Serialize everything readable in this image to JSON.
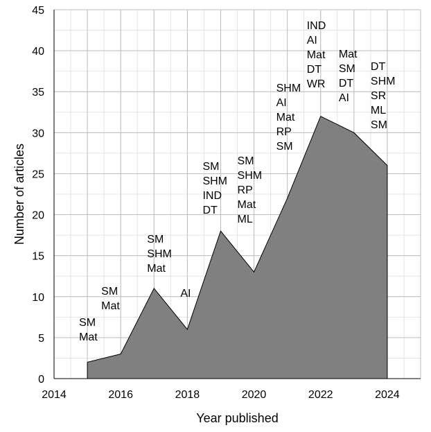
{
  "chart_data": {
    "type": "area",
    "xlabel": "Year published",
    "ylabel": "Number of articles",
    "xlim": [
      2014,
      2025
    ],
    "ylim": [
      0,
      45
    ],
    "x_ticks": [
      2014,
      2016,
      2018,
      2020,
      2022,
      2024
    ],
    "y_ticks": [
      0,
      5,
      10,
      15,
      20,
      25,
      30,
      35,
      40,
      45
    ],
    "grid": true,
    "fill_color": "#808080",
    "x": [
      2015,
      2016,
      2017,
      2018,
      2019,
      2020,
      2021,
      2022,
      2023,
      2024
    ],
    "values": [
      2,
      3,
      11,
      6,
      18,
      13,
      22,
      32,
      30,
      26
    ],
    "annotations": [
      {
        "x": 2015,
        "labels": [
          "SM",
          "Mat"
        ]
      },
      {
        "x": 2016,
        "labels": [
          "SM",
          "Mat"
        ]
      },
      {
        "x": 2017,
        "labels": [
          "SM",
          "SHM",
          "Mat"
        ]
      },
      {
        "x": 2018,
        "labels": [
          "AI"
        ]
      },
      {
        "x": 2019,
        "labels": [
          "SM",
          "SHM",
          "IND",
          "DT"
        ]
      },
      {
        "x": 2020,
        "labels": [
          "SM",
          "SHM",
          "RP",
          "Mat",
          "ML"
        ]
      },
      {
        "x": 2021,
        "labels": [
          "SHM",
          "AI",
          "Mat",
          "RP",
          "SM"
        ]
      },
      {
        "x": 2022,
        "labels": [
          "IND",
          "AI",
          "Mat",
          "DT",
          "WR"
        ]
      },
      {
        "x": 2023,
        "labels": [
          "Mat",
          "SM",
          "DT",
          "AI"
        ]
      },
      {
        "x": 2024,
        "labels": [
          "DT",
          "SHM",
          "SR",
          "ML",
          "SM"
        ]
      }
    ]
  }
}
